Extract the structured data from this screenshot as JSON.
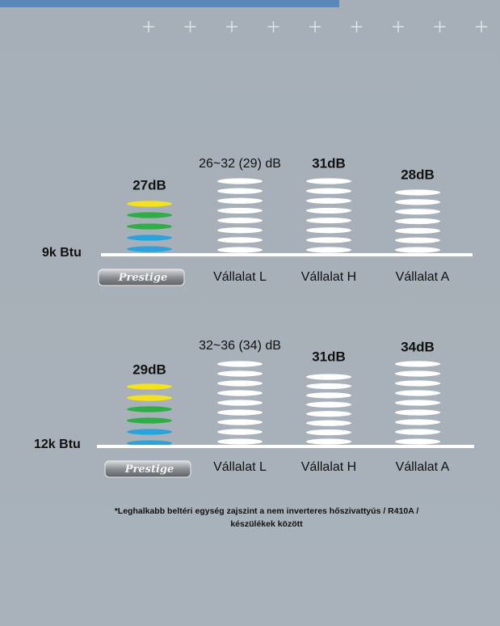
{
  "panels": [
    {
      "btu": "9k Btu",
      "brand": "Prestige",
      "brand_value": "27dB",
      "competitors": [
        {
          "value": "26~32 (29) dB",
          "label": "Vállalat L"
        },
        {
          "value": "31dB",
          "label": "Vállalat H"
        },
        {
          "value": "28dB",
          "label": "Vállalat A"
        }
      ]
    },
    {
      "btu": "12k Btu",
      "brand": "Prestige",
      "brand_value": "29dB",
      "competitors": [
        {
          "value": "32~36 (34) dB",
          "label": "Vállalat L"
        },
        {
          "value": "31dB",
          "label": "Vállalat H"
        },
        {
          "value": "34dB",
          "label": "Vállalat A"
        }
      ]
    }
  ],
  "footnote": [
    "*Leghalkabb beltéri egység zajszint a nem inverteres hőszivattyús / R410A /",
    "készülékek között"
  ]
}
